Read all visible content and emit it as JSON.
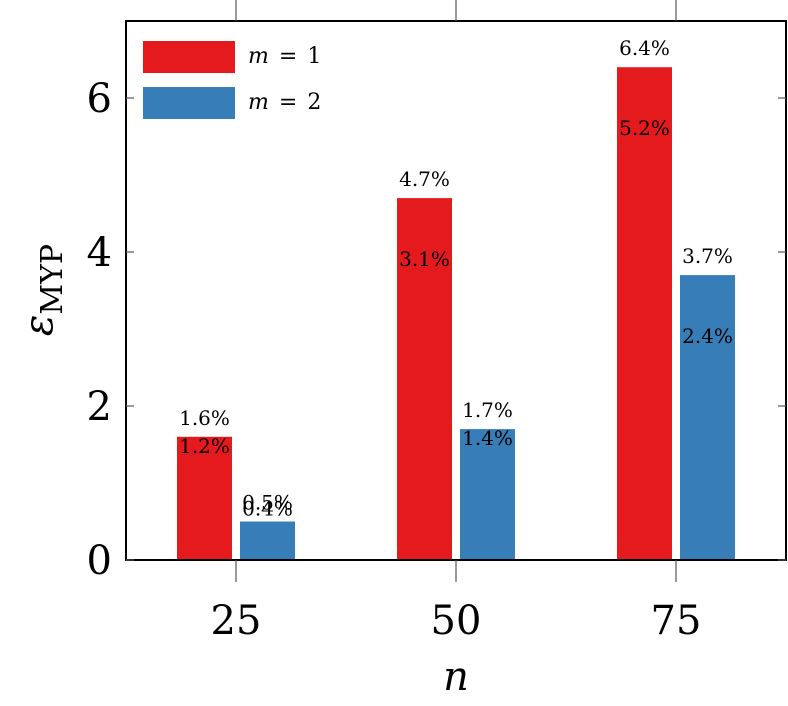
{
  "chart_data": {
    "type": "bar",
    "title": "",
    "xlabel": "n",
    "ylabel": {
      "main": "ε",
      "subscript": "MYP"
    },
    "categories": [
      "25",
      "50",
      "75"
    ],
    "ylim": [
      0,
      7
    ],
    "yticks": [
      0,
      2,
      4,
      6
    ],
    "series": [
      {
        "name": "m = 1",
        "legend": {
          "var": "m",
          "op": "=",
          "val": "1"
        },
        "color": "#e41a1c",
        "values": [
          1.6,
          4.7,
          6.4
        ],
        "top_labels": [
          "1.6%",
          "4.7%",
          "6.4%"
        ],
        "inner_labels": [
          "1.2%",
          "3.1%",
          "5.2%"
        ]
      },
      {
        "name": "m = 2",
        "legend": {
          "var": "m",
          "op": "=",
          "val": "2"
        },
        "color": "#377eb8",
        "values": [
          0.5,
          1.7,
          3.7
        ],
        "top_labels": [
          "0.5%",
          "1.7%",
          "3.7%"
        ],
        "inner_labels": [
          "0.4%",
          "1.4%",
          "2.4%"
        ]
      }
    ],
    "legend_position": "top-left",
    "grid": false
  }
}
